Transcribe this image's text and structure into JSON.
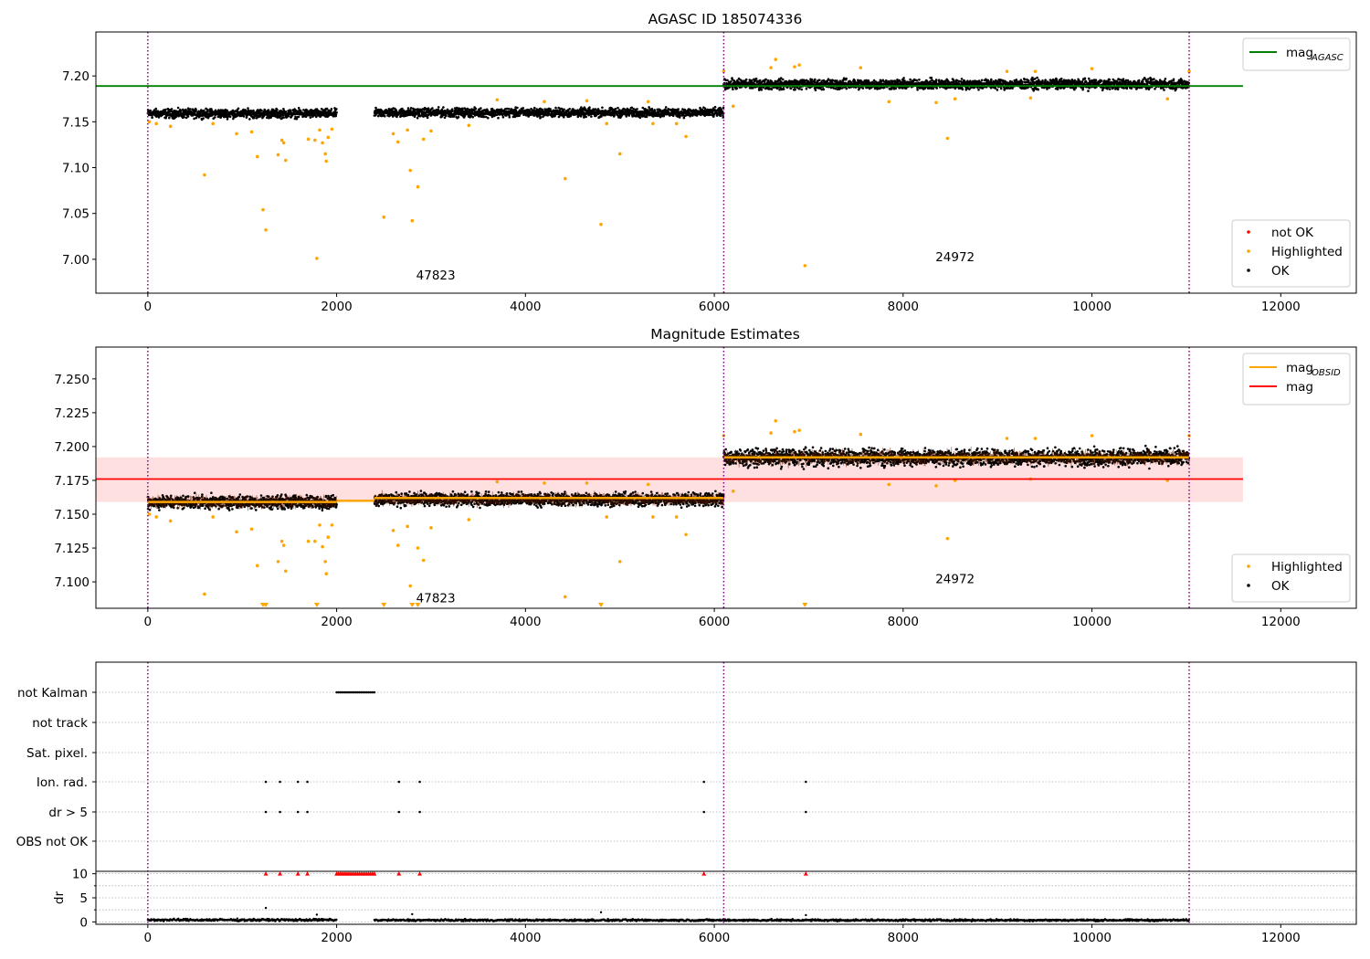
{
  "chart_data": [
    {
      "type": "scatter",
      "title": "AGASC ID 185074336",
      "xlim": [
        -550,
        12800
      ],
      "ylim": [
        6.963,
        7.248
      ],
      "xticks": [
        0,
        2000,
        4000,
        6000,
        8000,
        10000,
        12000
      ],
      "yticks": [
        7.0,
        7.05,
        7.1,
        7.15,
        7.2
      ],
      "ytick_labels": [
        "7.00",
        "7.05",
        "7.10",
        "7.15",
        "7.20"
      ],
      "vlines_x": [
        0,
        6100,
        11030
      ],
      "hlines": [
        {
          "name": "mag_AGASC",
          "y": 7.189,
          "x_range": [
            -550,
            11600
          ],
          "color": "#008000"
        }
      ],
      "segments": [
        {
          "x_range": [
            0,
            2000
          ],
          "y_center": 7.159,
          "y_spread": 0.007
        },
        {
          "x_range": [
            2400,
            6100
          ],
          "y_center": 7.16,
          "y_spread": 0.007
        },
        {
          "x_range": [
            6100,
            11030
          ],
          "y_center": 7.191,
          "y_spread": 0.008
        }
      ],
      "highlighted_points": [
        [
          15,
          7.15
        ],
        [
          90,
          7.148
        ],
        [
          240,
          7.145
        ],
        [
          600,
          7.092
        ],
        [
          690,
          7.148
        ],
        [
          940,
          7.137
        ],
        [
          1100,
          7.139
        ],
        [
          1160,
          7.112
        ],
        [
          1220,
          7.054
        ],
        [
          1250,
          7.032
        ],
        [
          1380,
          7.114
        ],
        [
          1420,
          7.13
        ],
        [
          1440,
          7.127
        ],
        [
          1460,
          7.108
        ],
        [
          1700,
          7.131
        ],
        [
          1770,
          7.13
        ],
        [
          1790,
          7.001
        ],
        [
          1820,
          7.141
        ],
        [
          1850,
          7.127
        ],
        [
          1880,
          7.115
        ],
        [
          1890,
          7.107
        ],
        [
          1910,
          7.133
        ],
        [
          1950,
          7.142
        ],
        [
          2500,
          7.046
        ],
        [
          2600,
          7.137
        ],
        [
          2650,
          7.128
        ],
        [
          2750,
          7.141
        ],
        [
          2800,
          7.042
        ],
        [
          2780,
          7.097
        ],
        [
          2860,
          7.079
        ],
        [
          2920,
          7.131
        ],
        [
          3000,
          7.14
        ],
        [
          3400,
          7.146
        ],
        [
          3700,
          7.174
        ],
        [
          4200,
          7.172
        ],
        [
          4420,
          7.088
        ],
        [
          4650,
          7.173
        ],
        [
          4800,
          7.038
        ],
        [
          4860,
          7.148
        ],
        [
          5000,
          7.115
        ],
        [
          5300,
          7.172
        ],
        [
          5350,
          7.148
        ],
        [
          5600,
          7.148
        ],
        [
          5700,
          7.134
        ],
        [
          6100,
          7.205
        ],
        [
          6200,
          7.167
        ],
        [
          6600,
          7.209
        ],
        [
          6650,
          7.218
        ],
        [
          6850,
          7.21
        ],
        [
          6900,
          7.212
        ],
        [
          6960,
          6.993
        ],
        [
          7550,
          7.209
        ],
        [
          7850,
          7.172
        ],
        [
          8350,
          7.171
        ],
        [
          8470,
          7.132
        ],
        [
          8550,
          7.175
        ],
        [
          9100,
          7.205
        ],
        [
          9350,
          7.176
        ],
        [
          9400,
          7.205
        ],
        [
          10000,
          7.208
        ],
        [
          10800,
          7.175
        ],
        [
          11030,
          7.205
        ]
      ],
      "annotations": [
        {
          "text": "47823",
          "x": 3050,
          "y": 6.978
        },
        {
          "text": "24972",
          "x": 8550,
          "y": 6.998
        }
      ],
      "legends": [
        {
          "placement": "upper-right",
          "entries": [
            {
              "label": "mag",
              "sub": "AGASC",
              "color": "#008000",
              "kind": "line"
            }
          ]
        },
        {
          "placement": "lower-right",
          "entries": [
            {
              "label": "not OK",
              "color": "#ff0000",
              "kind": "dot"
            },
            {
              "label": "Highlighted",
              "color": "#ffa500",
              "kind": "dot"
            },
            {
              "label": "OK",
              "color": "#000000",
              "kind": "dot"
            }
          ]
        }
      ]
    },
    {
      "type": "scatter",
      "title": "Magnitude Estimates",
      "xlim": [
        -550,
        12800
      ],
      "ylim": [
        7.0805,
        7.2735
      ],
      "xticks": [
        0,
        2000,
        4000,
        6000,
        8000,
        10000,
        12000
      ],
      "yticks": [
        7.1,
        7.125,
        7.15,
        7.175,
        7.2,
        7.225,
        7.25
      ],
      "ytick_labels": [
        "7.100",
        "7.125",
        "7.150",
        "7.175",
        "7.200",
        "7.225",
        "7.250"
      ],
      "vlines_x": [
        0,
        6100,
        11030
      ],
      "band": {
        "y_range": [
          7.159,
          7.192
        ],
        "x_range": [
          -550,
          11600
        ],
        "color": "#ffcccc"
      },
      "hlines": [
        {
          "name": "mag",
          "y": 7.176,
          "x_range": [
            -550,
            11600
          ],
          "color": "#ff0000"
        }
      ],
      "obsid_mags": [
        {
          "x_range": [
            0,
            2000
          ],
          "y": 7.159
        },
        {
          "x_range": [
            2000,
            2400
          ],
          "y": 7.16
        },
        {
          "x_range": [
            2400,
            6100
          ],
          "y": 7.162
        },
        {
          "x_range": [
            6100,
            11030
          ],
          "y": 7.192
        }
      ],
      "segments": [
        {
          "x_range": [
            0,
            2000
          ],
          "y_center": 7.159,
          "y_spread": 0.007
        },
        {
          "x_range": [
            2400,
            6100
          ],
          "y_center": 7.161,
          "y_spread": 0.007
        },
        {
          "x_range": [
            6100,
            11030
          ],
          "y_center": 7.192,
          "y_spread": 0.009
        }
      ],
      "highlighted_points": [
        [
          15,
          7.15
        ],
        [
          90,
          7.148
        ],
        [
          240,
          7.145
        ],
        [
          600,
          7.091
        ],
        [
          690,
          7.148
        ],
        [
          940,
          7.137
        ],
        [
          1100,
          7.139
        ],
        [
          1160,
          7.112
        ],
        [
          1380,
          7.115
        ],
        [
          1420,
          7.13
        ],
        [
          1440,
          7.127
        ],
        [
          1460,
          7.108
        ],
        [
          1700,
          7.13
        ],
        [
          1770,
          7.13
        ],
        [
          1820,
          7.142
        ],
        [
          1850,
          7.126
        ],
        [
          1880,
          7.115
        ],
        [
          1890,
          7.106
        ],
        [
          1910,
          7.133
        ],
        [
          1950,
          7.142
        ],
        [
          2600,
          7.138
        ],
        [
          2650,
          7.127
        ],
        [
          2750,
          7.141
        ],
        [
          2780,
          7.097
        ],
        [
          2860,
          7.125
        ],
        [
          2920,
          7.116
        ],
        [
          3000,
          7.14
        ],
        [
          3400,
          7.146
        ],
        [
          3700,
          7.174
        ],
        [
          4200,
          7.173
        ],
        [
          4420,
          7.089
        ],
        [
          4650,
          7.173
        ],
        [
          4860,
          7.148
        ],
        [
          5000,
          7.115
        ],
        [
          5300,
          7.172
        ],
        [
          5350,
          7.148
        ],
        [
          5600,
          7.148
        ],
        [
          5700,
          7.135
        ],
        [
          6100,
          7.208
        ],
        [
          6200,
          7.167
        ],
        [
          6600,
          7.21
        ],
        [
          6650,
          7.219
        ],
        [
          6850,
          7.211
        ],
        [
          6900,
          7.212
        ],
        [
          7550,
          7.209
        ],
        [
          7850,
          7.172
        ],
        [
          8350,
          7.171
        ],
        [
          8470,
          7.132
        ],
        [
          8550,
          7.175
        ],
        [
          9100,
          7.206
        ],
        [
          9350,
          7.176
        ],
        [
          9400,
          7.206
        ],
        [
          10000,
          7.208
        ],
        [
          10800,
          7.175
        ],
        [
          11030,
          7.208
        ]
      ],
      "clipped_points_x": [
        1220,
        1250,
        1790,
        2500,
        2800,
        2860,
        4800,
        6960
      ],
      "annotations": [
        {
          "text": "47823",
          "x": 3050,
          "y": 7.085
        },
        {
          "text": "24972",
          "x": 8550,
          "y": 7.099
        }
      ],
      "legends": [
        {
          "placement": "upper-right",
          "entries": [
            {
              "label": "mag",
              "sub": "OBSID",
              "color": "#ffa500",
              "kind": "line"
            },
            {
              "label": "mag",
              "sub": "",
              "color": "#ff0000",
              "kind": "line"
            }
          ]
        },
        {
          "placement": "lower-right",
          "entries": [
            {
              "label": "Highlighted",
              "color": "#ffa500",
              "kind": "dot"
            },
            {
              "label": "OK",
              "color": "#000000",
              "kind": "dot"
            }
          ]
        }
      ]
    },
    {
      "type": "scatter",
      "title": "",
      "xlim": [
        -550,
        12800
      ],
      "xticks": [
        0,
        2000,
        4000,
        6000,
        8000,
        10000,
        12000
      ],
      "vlines_x": [
        0,
        6100,
        11030
      ],
      "flag_rows": [
        {
          "label": "not Kalman",
          "x": [
            2000,
            2020,
            2040,
            2060,
            2080,
            2100,
            2120,
            2140,
            2160,
            2180,
            2200,
            2220,
            2240,
            2260,
            2280,
            2300,
            2320,
            2340,
            2360,
            2380,
            2400
          ]
        },
        {
          "label": "not track",
          "x": []
        },
        {
          "label": "Sat. pixel.",
          "x": []
        },
        {
          "label": "Ion. rad.",
          "x": [
            1250,
            1400,
            1590,
            1690,
            2660,
            2880,
            5890,
            6970
          ]
        },
        {
          "label": "dr > 5",
          "x": [
            1250,
            1400,
            1590,
            1690,
            2660,
            2880,
            5890,
            6970
          ]
        },
        {
          "label": "OBS not OK",
          "x": []
        }
      ],
      "dr": {
        "ylabel": "dr",
        "ylim": [
          -0.5,
          10.5
        ],
        "yticks": [
          0,
          5,
          10
        ],
        "ytick_labels": [
          "0",
          "5",
          "10"
        ],
        "clipped_x": [
          1250,
          1400,
          1590,
          1690,
          2000,
          2020,
          2040,
          2060,
          2080,
          2100,
          2120,
          2140,
          2160,
          2180,
          2200,
          2220,
          2240,
          2260,
          2280,
          2300,
          2320,
          2340,
          2360,
          2380,
          2400,
          2660,
          2880,
          5890,
          6970
        ],
        "outliers": [
          [
            1250,
            2.9
          ],
          [
            1790,
            1.5
          ],
          [
            2800,
            1.6
          ],
          [
            4800,
            2.0
          ],
          [
            6970,
            1.4
          ]
        ],
        "segments": [
          {
            "x_range": [
              0,
              2000
            ],
            "y_center": 0.4,
            "y_spread": 0.35
          },
          {
            "x_range": [
              2400,
              11030
            ],
            "y_center": 0.35,
            "y_spread": 0.3
          }
        ]
      }
    }
  ],
  "colors": {
    "ok": "#000000",
    "highlighted": "#ffa500",
    "not_ok": "#ff0000",
    "agasc": "#008000",
    "mag": "#ff0000",
    "obsid": "#ffa500",
    "vline": "#800080"
  }
}
